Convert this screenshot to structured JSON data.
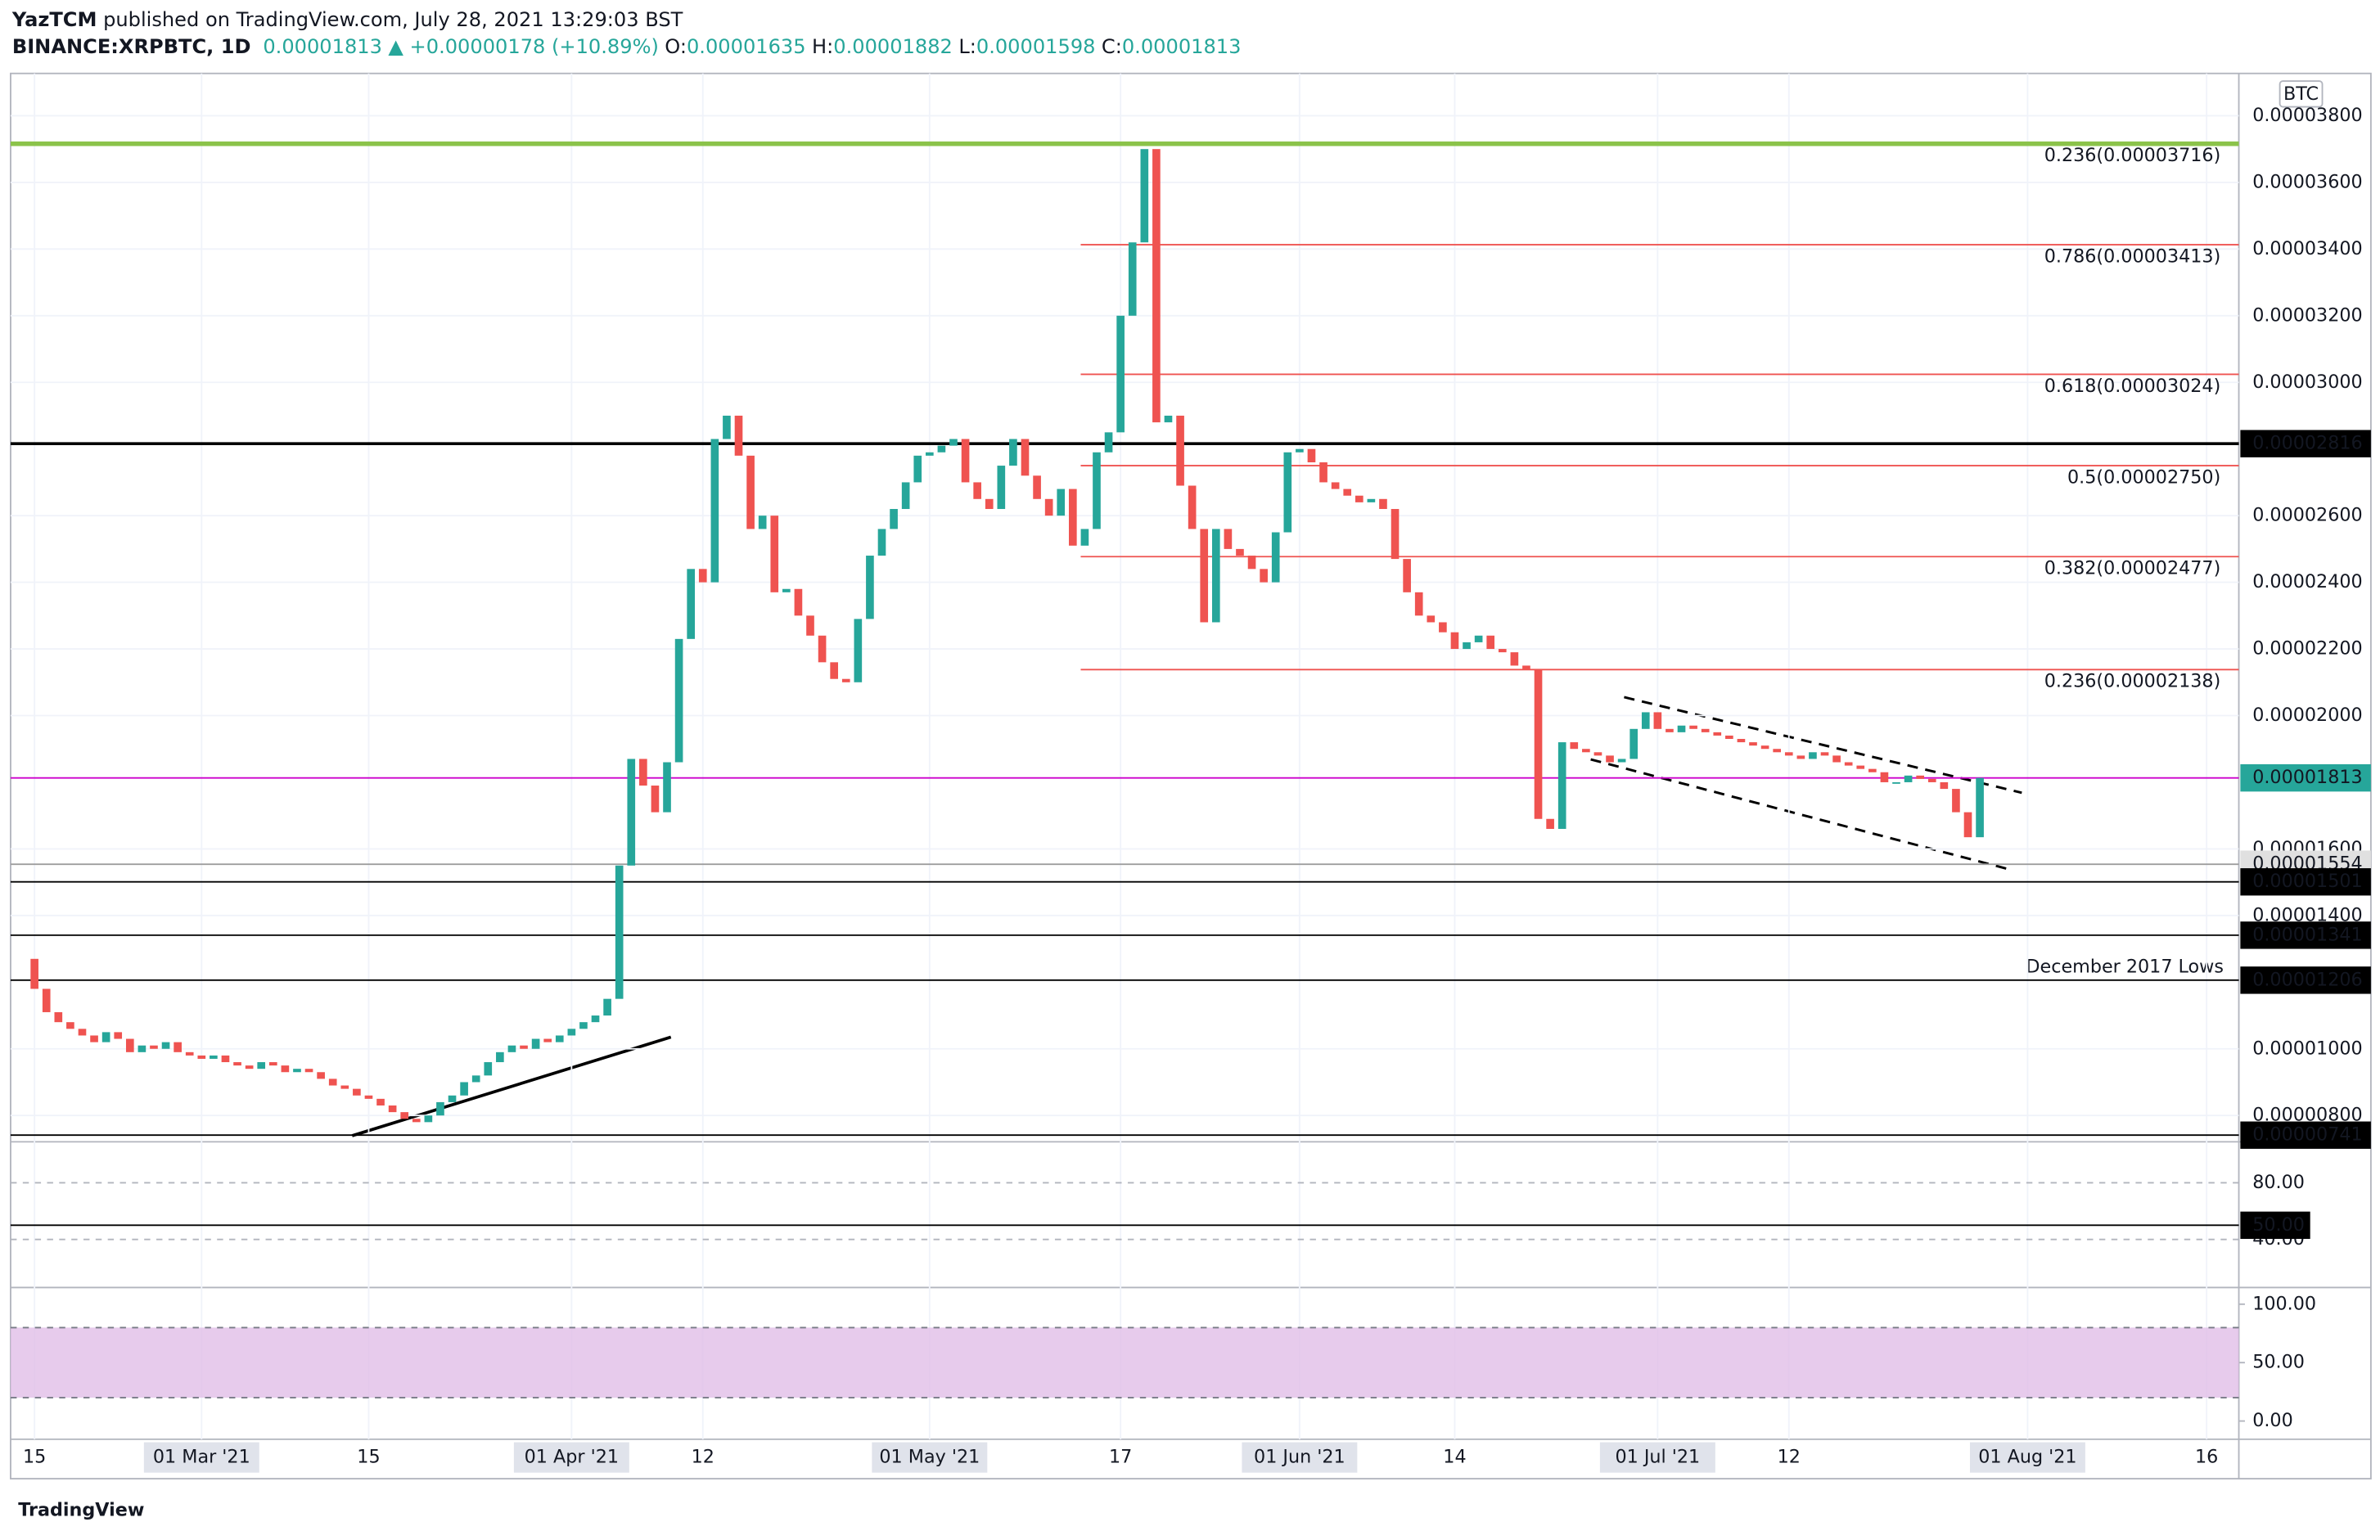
{
  "header": {
    "author": "YazTCM",
    "published": " published on TradingView.com, July 28, 2021 13:29:03 BST",
    "symbol": "BINANCE:XRPBTC, 1D",
    "last": "0.00001813",
    "change": "▲ +0.00000178 (+10.89%)",
    "o_label": "O:",
    "o": "0.00001635",
    "h_label": "H:",
    "h": "0.00001882",
    "l_label": "L:",
    "l": "0.00001598",
    "c_label": "C:",
    "c": "0.00001813",
    "currency": "BTC",
    "note": "December 2017 Lows",
    "logo": "TradingView"
  },
  "chart_data": [
    {
      "type": "candlestick",
      "up_color": "#26a69a",
      "down_color": "#ef5350",
      "close": [
        1.27e-05,
        1.18e-05,
        1.11e-05,
        1.08e-05,
        1.06e-05,
        1.04e-05,
        1.02e-05,
        1.05e-05,
        1.03e-05,
        9.9e-06,
        1.01e-05,
        1e-05,
        1.02e-05,
        9.9e-06,
        9.8e-06,
        9.7e-06,
        9.8e-06,
        9.6e-06,
        9.5e-06,
        9.4e-06,
        9.6e-06,
        9.5e-06,
        9.3e-06,
        9.4e-06,
        9.3e-06,
        9.1e-06,
        8.9e-06,
        8.8e-06,
        8.6e-06,
        8.5e-06,
        8.3e-06,
        8.1e-06,
        7.9e-06,
        7.8e-06,
        8e-06,
        8.4e-06,
        8.6e-06,
        9e-06,
        9.2e-06,
        9.6e-06,
        9.9e-06,
        1.01e-05,
        1e-05,
        1.03e-05,
        1.02e-05,
        1.04e-05,
        1.06e-05,
        1.08e-05,
        1.1e-05,
        1.15e-05,
        1.55e-05,
        1.87e-05,
        1.79e-05,
        1.71e-05,
        1.86e-05,
        2.23e-05,
        2.44e-05,
        2.4e-05,
        2.83e-05,
        2.9e-05,
        2.78e-05,
        2.56e-05,
        2.6e-05,
        2.37e-05,
        2.38e-05,
        2.3e-05,
        2.24e-05,
        2.16e-05,
        2.11e-05,
        2.1e-05,
        2.29e-05,
        2.48e-05,
        2.56e-05,
        2.62e-05,
        2.7e-05,
        2.78e-05,
        2.79e-05,
        2.81e-05,
        2.83e-05,
        2.7e-05,
        2.65e-05,
        2.62e-05,
        2.75e-05,
        2.83e-05,
        2.72e-05,
        2.65e-05,
        2.6e-05,
        2.68e-05,
        2.51e-05,
        2.56e-05,
        2.79e-05,
        2.85e-05,
        3.2e-05,
        3.42e-05,
        3.7e-05,
        2.88e-05,
        2.9e-05,
        2.69e-05,
        2.56e-05,
        2.28e-05,
        2.56e-05,
        2.5e-05,
        2.48e-05,
        2.44e-05,
        2.4e-05,
        2.55e-05,
        2.79e-05,
        2.8e-05,
        2.76e-05,
        2.7e-05,
        2.68e-05,
        2.66e-05,
        2.64e-05,
        2.65e-05,
        2.62e-05,
        2.47e-05,
        2.37e-05,
        2.3e-05,
        2.28e-05,
        2.25e-05,
        2.2e-05,
        2.22e-05,
        2.24e-05,
        2.2e-05,
        2.19e-05,
        2.15e-05,
        2.14e-05,
        1.69e-05,
        1.66e-05,
        1.92e-05,
        1.9e-05,
        1.89e-05,
        1.88e-05,
        1.86e-05,
        1.87e-05,
        1.96e-05,
        2.01e-05,
        1.96e-05,
        1.95e-05,
        1.97e-05,
        1.96e-05,
        1.95e-05,
        1.94e-05,
        1.93e-05,
        1.92e-05,
        1.91e-05,
        1.9e-05,
        1.89e-05,
        1.88e-05,
        1.87e-05,
        1.89e-05,
        1.88e-05,
        1.86e-05,
        1.85e-05,
        1.84e-05,
        1.83e-05,
        1.8e-05,
        1.8e-05,
        1.82e-05,
        1.81e-05,
        1.8e-05,
        1.78e-05,
        1.71e-05,
        1.635e-05,
        1.813e-05
      ],
      "xlim": [
        -1,
        185.7
      ],
      "xticks": [
        {
          "value": 1,
          "label": "15"
        },
        {
          "value": 15,
          "label": "01 Mar '21"
        },
        {
          "value": 29,
          "label": "15"
        },
        {
          "value": 46,
          "label": "01 Apr '21"
        },
        {
          "value": 57,
          "label": "12"
        },
        {
          "value": 76,
          "label": "01 May '21"
        },
        {
          "value": 92,
          "label": "17"
        },
        {
          "value": 107,
          "label": "01 Jun '21"
        },
        {
          "value": 120,
          "label": "14"
        },
        {
          "value": 137,
          "label": "01 Jul '21"
        },
        {
          "value": 148,
          "label": "12"
        },
        {
          "value": 168,
          "label": "01 Aug '21"
        },
        {
          "value": 183,
          "label": "16"
        }
      ],
      "ylim": [
        7.21e-06,
        3.927e-05
      ],
      "yticks": [
        {
          "value": 3.8e-05,
          "label": "0.00003800"
        },
        {
          "value": 3.6e-05,
          "label": "0.00003600"
        },
        {
          "value": 3.4e-05,
          "label": "0.00003400"
        },
        {
          "value": 3.2e-05,
          "label": "0.00003200"
        },
        {
          "value": 3e-05,
          "label": "0.00003000"
        },
        {
          "value": 2.6e-05,
          "label": "0.00002600"
        },
        {
          "value": 2.4e-05,
          "label": "0.00002400"
        },
        {
          "value": 2.2e-05,
          "label": "0.00002200"
        },
        {
          "value": 2e-05,
          "label": "0.00002000"
        },
        {
          "value": 1.6e-05,
          "label": "0.00001600"
        },
        {
          "value": 1.4e-05,
          "label": "0.00001400"
        },
        {
          "value": 1e-05,
          "label": "0.00001000"
        },
        {
          "value": 8e-06,
          "label": "0.00000800"
        }
      ],
      "fib_levels": [
        {
          "value": 3.716e-05,
          "label": "0.236(0.00003716)",
          "color": "#8bc34a"
        },
        {
          "value": 3.413e-05,
          "label": "0.786(0.00003413)",
          "color": "#ef5350"
        },
        {
          "value": 3.024e-05,
          "label": "0.618(0.00003024)",
          "color": "#ef5350"
        },
        {
          "value": 2.75e-05,
          "label": "0.5(0.00002750)",
          "color": "#ef5350"
        },
        {
          "value": 2.477e-05,
          "label": "0.382(0.00002477)",
          "color": "#ef5350"
        },
        {
          "value": 2.138e-05,
          "label": "0.236(0.00002138)",
          "color": "#ef5350"
        }
      ],
      "price_lines": [
        {
          "value": 2.816e-05,
          "label": "0.00002816",
          "color": "#000000",
          "box": "#000000"
        },
        {
          "value": 1.813e-05,
          "label": "0.00001813",
          "color": "#cc00cc",
          "box": "#26a69a"
        },
        {
          "value": 1.554e-05,
          "label": "0.00001554",
          "color": "#9e9e9e",
          "box": "#e0e0e0"
        },
        {
          "value": 1.501e-05,
          "label": "0.00001501",
          "color": "#000000",
          "box": "#000000"
        },
        {
          "value": 1.341e-05,
          "label": "0.00001341",
          "color": "#000000",
          "box": "#000000"
        },
        {
          "value": 1.206e-05,
          "label": "0.00001206",
          "color": "#000000",
          "box": "#000000"
        },
        {
          "value": 7.41e-06,
          "label": "0.00000741",
          "color": "#000000",
          "box": "#000000"
        }
      ]
    },
    {
      "type": "rsi",
      "ylim": [
        6.06,
        108.9
      ],
      "yticks": [
        {
          "value": 80,
          "label": "80.00"
        },
        {
          "value": 40,
          "label": "40.00"
        }
      ],
      "ref_line": {
        "value": 50,
        "label": "50.00"
      }
    },
    {
      "type": "stoch",
      "ylim": [
        -15.6,
        114.3
      ],
      "yticks": [
        {
          "value": 100,
          "label": "100.00"
        },
        {
          "value": 50,
          "label": "50.00"
        },
        {
          "value": 0,
          "label": "0.00"
        }
      ],
      "band": [
        20,
        80
      ],
      "band_color": "#e1bee7"
    }
  ]
}
